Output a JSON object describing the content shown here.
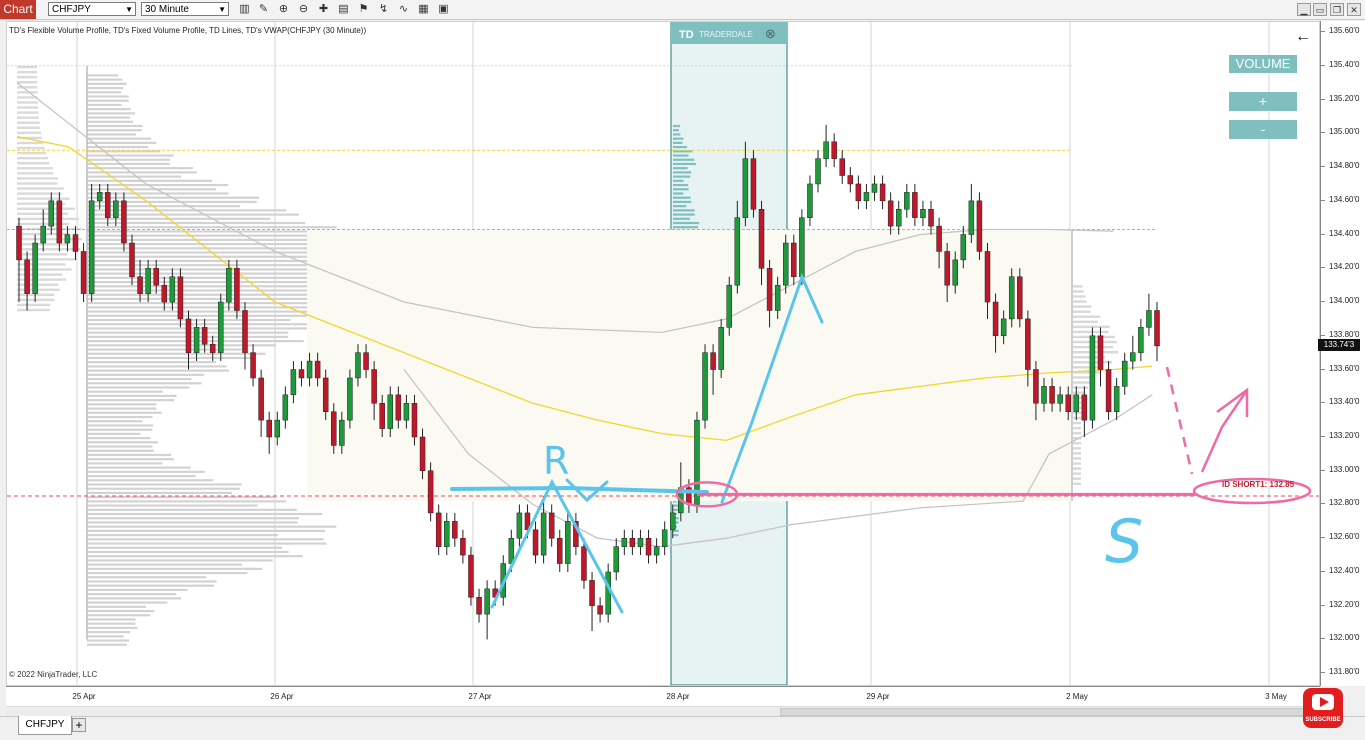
{
  "toolbar": {
    "chart_tab": "Chart",
    "instrument": "CHFJPY",
    "timeframe": "30 Minute",
    "icons": [
      "bar-type-icon",
      "draw-icon",
      "zoom-in-icon",
      "zoom-out-icon",
      "crosshair-icon",
      "properties-icon",
      "strategy-icon",
      "indicator-icon",
      "template-icon",
      "data-box-icon"
    ],
    "window_buttons": [
      "minimize",
      "maximize",
      "restore",
      "close"
    ]
  },
  "indicator_label": "TD's Flexible Volume Profile, TD's Fixed Volume Profile, TD Lines, TD's VWAP(CHFJPY (30 Minute))",
  "copyright": "© 2022 NinjaTrader, LLC",
  "volume_panel": {
    "title": "VOLUME",
    "plus": "+",
    "minus": "-",
    "back_arrow": "←"
  },
  "tradedale": {
    "logo": "TD",
    "text": "TRADERDALE",
    "close": "⊗"
  },
  "current_price_label": "133.74'3",
  "short_level": {
    "label": "ID SHORT1: 132.85",
    "price": 132.85
  },
  "annotations": {
    "r_letter": "R",
    "s_letter": "S"
  },
  "instrument_tab": "CHFJPY",
  "add_tab": "+",
  "subscribe": "SUBSCRIBE",
  "chart_data": {
    "type": "candlestick",
    "y_ticks": [
      "135.60'0",
      "135.40'0",
      "135.20'0",
      "135.00'0",
      "134.80'0",
      "134.60'0",
      "134.40'0",
      "134.20'0",
      "134.00'0",
      "133.80'0",
      "133.60'0",
      "133.40'0",
      "133.20'0",
      "133.00'0",
      "132.80'0",
      "132.60'0",
      "132.40'0",
      "132.20'0",
      "132.00'0",
      "131.80'0"
    ],
    "ylim": [
      131.73,
      135.66
    ],
    "x_ticks": [
      "25 Apr",
      "26 Apr",
      "27 Apr",
      "28 Apr",
      "29 Apr",
      "2 May",
      "3 May"
    ],
    "grid": true,
    "horizontal_levels": [
      134.9,
      134.43,
      132.85
    ],
    "current_price": 133.74,
    "series": [
      {
        "type": "vwap",
        "color": "#f0d72a",
        "points": [
          [
            0,
            134.98
          ],
          [
            0.04,
            134.92
          ],
          [
            0.1,
            134.6
          ],
          [
            0.15,
            134.3
          ],
          [
            0.2,
            134.0
          ],
          [
            0.25,
            133.85
          ],
          [
            0.3,
            133.7
          ],
          [
            0.35,
            133.55
          ],
          [
            0.4,
            133.4
          ],
          [
            0.45,
            133.3
          ],
          [
            0.5,
            133.22
          ],
          [
            0.55,
            133.18
          ],
          [
            0.6,
            133.32
          ],
          [
            0.65,
            133.45
          ],
          [
            0.7,
            133.5
          ],
          [
            0.75,
            133.55
          ],
          [
            0.8,
            133.58
          ],
          [
            0.85,
            133.6
          ],
          [
            0.88,
            133.62
          ]
        ]
      },
      {
        "type": "vwap-band",
        "color": "#c8c4c4",
        "points": [
          [
            0,
            135.3
          ],
          [
            0.1,
            134.7
          ],
          [
            0.2,
            134.3
          ],
          [
            0.3,
            134.0
          ],
          [
            0.4,
            133.85
          ],
          [
            0.5,
            133.82
          ],
          [
            0.55,
            133.9
          ],
          [
            0.6,
            134.1
          ],
          [
            0.65,
            134.3
          ],
          [
            0.7,
            134.4
          ],
          [
            0.75,
            134.43
          ],
          [
            0.8,
            134.43
          ],
          [
            0.85,
            134.42
          ]
        ]
      },
      {
        "type": "vwap-band",
        "color": "#c8c4c4",
        "points": [
          [
            0.3,
            133.6
          ],
          [
            0.35,
            133.1
          ],
          [
            0.4,
            132.8
          ],
          [
            0.45,
            132.6
          ],
          [
            0.5,
            132.55
          ],
          [
            0.55,
            132.6
          ],
          [
            0.6,
            132.68
          ],
          [
            0.7,
            132.78
          ],
          [
            0.78,
            132.82
          ],
          [
            0.8,
            133.1
          ],
          [
            0.85,
            133.3
          ],
          [
            0.88,
            133.45
          ]
        ]
      }
    ],
    "candles": [
      [
        0,
        134.45,
        134.25,
        134.5,
        134.0
      ],
      [
        1,
        134.25,
        134.05,
        134.3,
        133.95
      ],
      [
        2,
        134.05,
        134.35,
        134.4,
        134.0
      ],
      [
        3,
        134.35,
        134.45,
        134.55,
        134.3
      ],
      [
        4,
        134.45,
        134.6,
        134.65,
        134.4
      ],
      [
        5,
        134.6,
        134.35,
        134.65,
        134.3
      ],
      [
        6,
        134.35,
        134.4,
        134.45,
        134.3
      ],
      [
        7,
        134.4,
        134.3,
        134.45,
        134.25
      ],
      [
        8,
        134.3,
        134.05,
        134.35,
        134.0
      ],
      [
        9,
        134.05,
        134.6,
        134.7,
        134.0
      ],
      [
        10,
        134.6,
        134.65,
        134.7,
        134.55
      ],
      [
        11,
        134.65,
        134.5,
        134.7,
        134.45
      ],
      [
        12,
        134.5,
        134.6,
        134.65,
        134.45
      ],
      [
        13,
        134.6,
        134.35,
        134.65,
        134.3
      ],
      [
        14,
        134.35,
        134.15,
        134.4,
        134.1
      ],
      [
        15,
        134.15,
        134.05,
        134.25,
        134.0
      ],
      [
        16,
        134.05,
        134.2,
        134.25,
        134.0
      ],
      [
        17,
        134.2,
        134.1,
        134.25,
        134.05
      ],
      [
        18,
        134.1,
        134.0,
        134.15,
        133.95
      ],
      [
        19,
        134.0,
        134.15,
        134.2,
        133.95
      ],
      [
        20,
        134.15,
        133.9,
        134.2,
        133.85
      ],
      [
        21,
        133.9,
        133.7,
        133.95,
        133.6
      ],
      [
        22,
        133.7,
        133.85,
        133.9,
        133.65
      ],
      [
        23,
        133.85,
        133.75,
        133.9,
        133.7
      ],
      [
        24,
        133.75,
        133.7,
        133.8,
        133.65
      ],
      [
        25,
        133.7,
        134.0,
        134.05,
        133.65
      ],
      [
        26,
        134.0,
        134.2,
        134.25,
        133.95
      ],
      [
        27,
        134.2,
        133.95,
        134.25,
        133.9
      ],
      [
        28,
        133.95,
        133.7,
        134.0,
        133.6
      ],
      [
        29,
        133.7,
        133.55,
        133.75,
        133.5
      ],
      [
        30,
        133.55,
        133.3,
        133.6,
        133.2
      ],
      [
        31,
        133.3,
        133.2,
        133.35,
        133.1
      ],
      [
        32,
        133.2,
        133.3,
        133.35,
        133.15
      ],
      [
        33,
        133.3,
        133.45,
        133.5,
        133.25
      ],
      [
        34,
        133.45,
        133.6,
        133.65,
        133.4
      ],
      [
        35,
        133.6,
        133.55,
        133.65,
        133.5
      ],
      [
        36,
        133.55,
        133.65,
        133.7,
        133.5
      ],
      [
        37,
        133.65,
        133.55,
        133.7,
        133.5
      ],
      [
        38,
        133.55,
        133.35,
        133.6,
        133.3
      ],
      [
        39,
        133.35,
        133.15,
        133.4,
        133.1
      ],
      [
        40,
        133.15,
        133.3,
        133.35,
        133.1
      ],
      [
        41,
        133.3,
        133.55,
        133.6,
        133.25
      ],
      [
        42,
        133.55,
        133.7,
        133.75,
        133.5
      ],
      [
        43,
        133.7,
        133.6,
        133.75,
        133.55
      ],
      [
        44,
        133.6,
        133.4,
        133.65,
        133.3
      ],
      [
        45,
        133.4,
        133.25,
        133.45,
        133.2
      ],
      [
        46,
        133.25,
        133.45,
        133.5,
        133.2
      ],
      [
        47,
        133.45,
        133.3,
        133.5,
        133.25
      ],
      [
        48,
        133.3,
        133.4,
        133.45,
        133.25
      ],
      [
        49,
        133.4,
        133.2,
        133.45,
        133.15
      ],
      [
        50,
        133.2,
        133.0,
        133.25,
        132.95
      ],
      [
        51,
        133.0,
        132.75,
        133.05,
        132.7
      ],
      [
        52,
        132.75,
        132.55,
        132.8,
        132.5
      ],
      [
        53,
        132.55,
        132.7,
        132.75,
        132.5
      ],
      [
        54,
        132.7,
        132.6,
        132.75,
        132.55
      ],
      [
        55,
        132.6,
        132.5,
        132.65,
        132.45
      ],
      [
        56,
        132.5,
        132.25,
        132.55,
        132.2
      ],
      [
        57,
        132.25,
        132.15,
        132.3,
        132.1
      ],
      [
        58,
        132.15,
        132.3,
        132.35,
        132.0
      ],
      [
        59,
        132.3,
        132.25,
        132.35,
        132.2
      ],
      [
        60,
        132.25,
        132.45,
        132.5,
        132.2
      ],
      [
        61,
        132.45,
        132.6,
        132.65,
        132.4
      ],
      [
        62,
        132.6,
        132.75,
        132.8,
        132.55
      ],
      [
        63,
        132.75,
        132.65,
        132.8,
        132.6
      ],
      [
        64,
        132.65,
        132.5,
        132.7,
        132.45
      ],
      [
        65,
        132.5,
        132.75,
        132.85,
        132.45
      ],
      [
        66,
        132.75,
        132.6,
        132.8,
        132.55
      ],
      [
        67,
        132.6,
        132.45,
        132.65,
        132.4
      ],
      [
        68,
        132.45,
        132.7,
        132.75,
        132.4
      ],
      [
        69,
        132.7,
        132.55,
        132.75,
        132.5
      ],
      [
        70,
        132.55,
        132.35,
        132.6,
        132.3
      ],
      [
        71,
        132.35,
        132.2,
        132.4,
        132.05
      ],
      [
        72,
        132.2,
        132.15,
        132.25,
        132.1
      ],
      [
        73,
        132.15,
        132.4,
        132.45,
        132.1
      ],
      [
        74,
        132.4,
        132.55,
        132.6,
        132.35
      ],
      [
        75,
        132.55,
        132.6,
        132.65,
        132.5
      ],
      [
        76,
        132.6,
        132.55,
        132.65,
        132.5
      ],
      [
        77,
        132.55,
        132.6,
        132.65,
        132.5
      ],
      [
        78,
        132.6,
        132.5,
        132.65,
        132.45
      ],
      [
        79,
        132.5,
        132.55,
        132.6,
        132.45
      ],
      [
        80,
        132.55,
        132.65,
        132.7,
        132.5
      ],
      [
        81,
        132.65,
        132.75,
        132.8,
        132.6
      ],
      [
        82,
        132.75,
        132.9,
        133.05,
        132.7
      ],
      [
        83,
        132.9,
        132.8,
        132.95,
        132.75
      ],
      [
        84,
        132.8,
        133.3,
        133.35,
        132.75
      ],
      [
        85,
        133.3,
        133.7,
        133.75,
        133.25
      ],
      [
        86,
        133.7,
        133.6,
        133.75,
        133.45
      ],
      [
        87,
        133.6,
        133.85,
        133.9,
        133.55
      ],
      [
        88,
        133.85,
        134.1,
        134.15,
        133.8
      ],
      [
        89,
        134.1,
        134.5,
        134.6,
        134.05
      ],
      [
        90,
        134.5,
        134.85,
        134.95,
        134.45
      ],
      [
        91,
        134.85,
        134.55,
        134.9,
        134.5
      ],
      [
        92,
        134.55,
        134.2,
        134.6,
        134.1
      ],
      [
        93,
        134.2,
        133.95,
        134.25,
        133.85
      ],
      [
        94,
        133.95,
        134.1,
        134.15,
        133.9
      ],
      [
        95,
        134.1,
        134.35,
        134.4,
        134.05
      ],
      [
        96,
        134.35,
        134.15,
        134.4,
        134.1
      ],
      [
        97,
        134.15,
        134.5,
        134.55,
        134.1
      ],
      [
        98,
        134.5,
        134.7,
        134.75,
        134.45
      ],
      [
        99,
        134.7,
        134.85,
        134.9,
        134.65
      ],
      [
        100,
        134.85,
        134.95,
        135.05,
        134.8
      ],
      [
        101,
        134.95,
        134.85,
        135.0,
        134.8
      ],
      [
        102,
        134.85,
        134.75,
        134.9,
        134.7
      ],
      [
        103,
        134.75,
        134.7,
        134.8,
        134.65
      ],
      [
        104,
        134.7,
        134.6,
        134.75,
        134.55
      ],
      [
        105,
        134.6,
        134.65,
        134.7,
        134.55
      ],
      [
        106,
        134.65,
        134.7,
        134.75,
        134.6
      ],
      [
        107,
        134.7,
        134.6,
        134.75,
        134.55
      ],
      [
        108,
        134.6,
        134.45,
        134.65,
        134.4
      ],
      [
        109,
        134.45,
        134.55,
        134.6,
        134.4
      ],
      [
        110,
        134.55,
        134.65,
        134.7,
        134.5
      ],
      [
        111,
        134.65,
        134.5,
        134.7,
        134.45
      ],
      [
        112,
        134.5,
        134.55,
        134.6,
        134.45
      ],
      [
        113,
        134.55,
        134.45,
        134.6,
        134.4
      ],
      [
        114,
        134.45,
        134.3,
        134.5,
        134.2
      ],
      [
        115,
        134.3,
        134.1,
        134.35,
        134.0
      ],
      [
        116,
        134.1,
        134.25,
        134.3,
        134.05
      ],
      [
        117,
        134.25,
        134.4,
        134.45,
        134.2
      ],
      [
        118,
        134.4,
        134.6,
        134.7,
        134.35
      ],
      [
        119,
        134.6,
        134.3,
        134.65,
        134.25
      ],
      [
        120,
        134.3,
        134.0,
        134.35,
        133.9
      ],
      [
        121,
        134.0,
        133.8,
        134.05,
        133.7
      ],
      [
        122,
        133.8,
        133.9,
        133.95,
        133.75
      ],
      [
        123,
        133.9,
        134.15,
        134.2,
        133.85
      ],
      [
        124,
        134.15,
        133.9,
        134.2,
        133.85
      ],
      [
        125,
        133.9,
        133.6,
        133.95,
        133.5
      ],
      [
        126,
        133.6,
        133.4,
        133.65,
        133.3
      ],
      [
        127,
        133.4,
        133.5,
        133.55,
        133.35
      ],
      [
        128,
        133.5,
        133.4,
        133.55,
        133.35
      ],
      [
        129,
        133.4,
        133.45,
        133.5,
        133.35
      ],
      [
        130,
        133.45,
        133.35,
        133.5,
        133.3
      ],
      [
        131,
        133.35,
        133.45,
        133.5,
        133.3
      ],
      [
        132,
        133.45,
        133.3,
        133.5,
        133.2
      ],
      [
        133,
        133.3,
        133.8,
        133.85,
        133.25
      ],
      [
        134,
        133.8,
        133.6,
        133.85,
        133.5
      ],
      [
        135,
        133.6,
        133.35,
        133.65,
        133.3
      ],
      [
        136,
        133.35,
        133.5,
        133.55,
        133.3
      ],
      [
        137,
        133.5,
        133.65,
        133.7,
        133.45
      ],
      [
        138,
        133.65,
        133.7,
        133.8,
        133.6
      ],
      [
        139,
        133.7,
        133.85,
        133.9,
        133.65
      ],
      [
        140,
        133.85,
        133.95,
        134.05,
        133.8
      ],
      [
        141,
        133.95,
        133.74,
        134.0,
        133.65
      ]
    ]
  }
}
